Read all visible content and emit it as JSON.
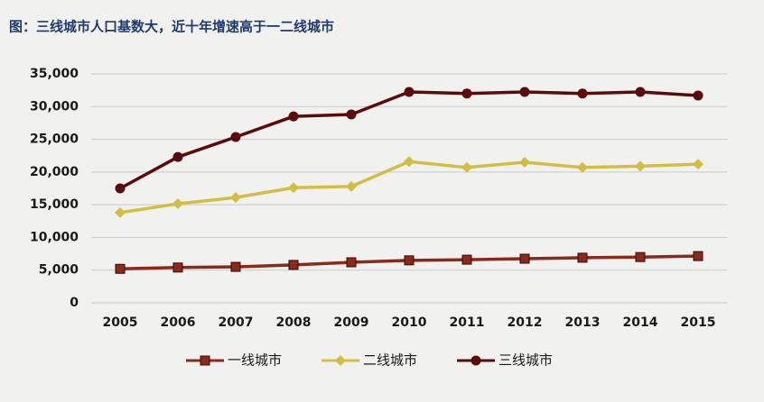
{
  "chart_data": {
    "type": "line",
    "title": "图：三线城市人口基数大，近十年增速高于一二线城市",
    "categories": [
      "2005",
      "2006",
      "2007",
      "2008",
      "2009",
      "2010",
      "2011",
      "2012",
      "2013",
      "2014",
      "2015"
    ],
    "series": [
      {
        "name": "一线城市",
        "color": "#8a2a1c",
        "marker": "square",
        "values": [
          5200,
          5400,
          5500,
          5800,
          6200,
          6500,
          6600,
          6750,
          6900,
          7000,
          7150
        ]
      },
      {
        "name": "二线城市",
        "color": "#d2be45",
        "marker": "diamond",
        "values": [
          13800,
          15150,
          16100,
          17600,
          17800,
          21600,
          20700,
          21500,
          20700,
          20900,
          21200
        ]
      },
      {
        "name": "三线城市",
        "color": "#5a0c0c",
        "marker": "circle",
        "values": [
          17500,
          22300,
          25350,
          28500,
          28800,
          32250,
          32000,
          32250,
          32000,
          32250,
          31700
        ]
      }
    ],
    "ylim": [
      0,
      35000
    ],
    "yticks": [
      0,
      {
        "value": 5000,
        "label": "5,000"
      },
      {
        "value": 10000,
        "label": "10,000"
      },
      {
        "value": 15000,
        "label": "15,000"
      },
      {
        "value": 20000,
        "label": "20,000"
      },
      {
        "value": 25000,
        "label": "25,000"
      },
      {
        "value": 30000,
        "label": "30,000"
      },
      {
        "value": 35000,
        "label": "35,000"
      }
    ],
    "grid": true,
    "legend": "bottom"
  }
}
